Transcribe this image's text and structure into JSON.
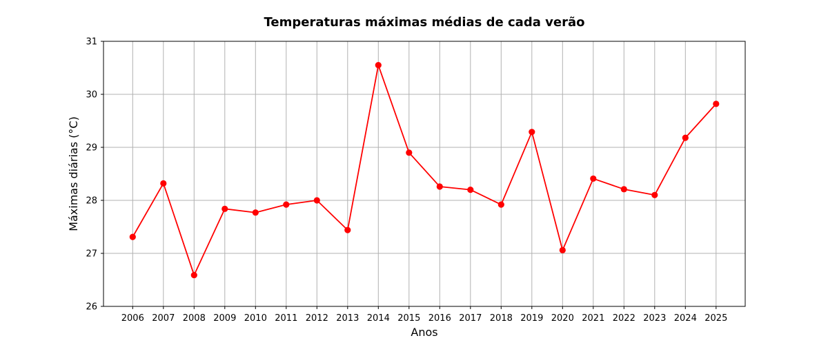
{
  "chart_data": {
    "type": "line",
    "title": "Temperaturas máximas médias de cada verão",
    "xlabel": "Anos",
    "ylabel": "Máximas diárias (°C)",
    "ylim": [
      26,
      31
    ],
    "yticks": [
      26,
      27,
      28,
      29,
      30,
      31
    ],
    "grid": true,
    "categories": [
      "2006",
      "2007",
      "2008",
      "2009",
      "2010",
      "2011",
      "2012",
      "2013",
      "2014",
      "2015",
      "2016",
      "2017",
      "2018",
      "2019",
      "2020",
      "2021",
      "2022",
      "2023",
      "2024",
      "2025"
    ],
    "series": [
      {
        "color": "#ff0000",
        "marker": "circle",
        "values": [
          27.31,
          28.32,
          26.59,
          27.84,
          27.77,
          27.92,
          28.0,
          27.44,
          30.55,
          28.9,
          28.26,
          28.2,
          27.92,
          29.29,
          27.06,
          28.41,
          28.21,
          28.1,
          29.18,
          29.82
        ]
      }
    ]
  }
}
